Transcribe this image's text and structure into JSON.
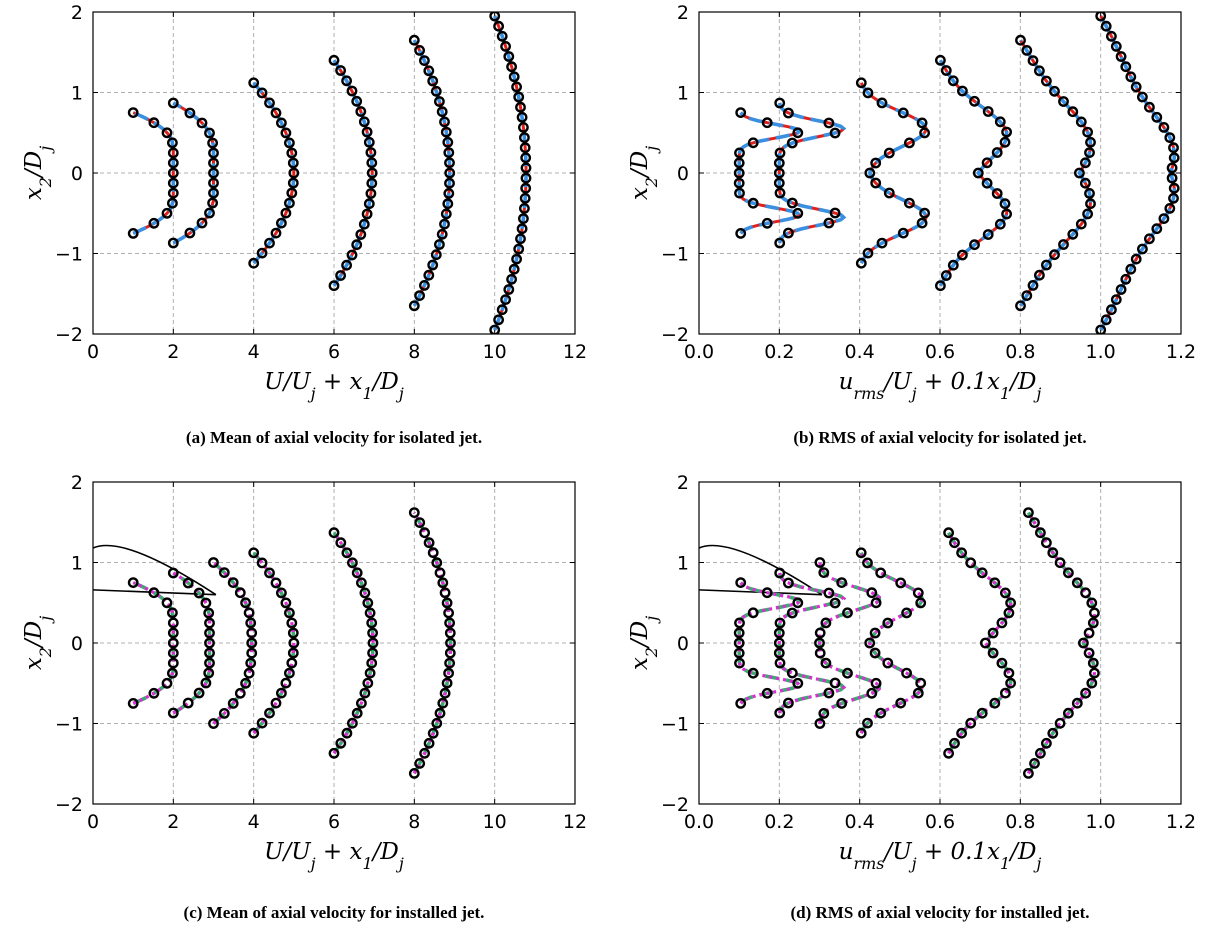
{
  "chart_data": [
    {
      "type": "line",
      "panel": "a",
      "caption": "(a) Mean of axial velocity for isolated jet.",
      "xlabel": "U/U_j + x_1/D_j",
      "ylabel": "x_2/D_j",
      "xlim": [
        0,
        12
      ],
      "ylim": [
        -2,
        2
      ],
      "xticks": [
        "0",
        "2",
        "4",
        "6",
        "8",
        "10",
        "12"
      ],
      "yticks": [
        "−2",
        "−1",
        "0",
        "1",
        "2"
      ],
      "grid": true,
      "profile_kind": "mean",
      "stations": [
        {
          "base": 1,
          "halfwidth": 0.75,
          "peak": 1.0,
          "core": 0.35
        },
        {
          "base": 2,
          "halfwidth": 0.87,
          "peak": 1.0,
          "core": 0.35
        },
        {
          "base": 4,
          "halfwidth": 1.12,
          "peak": 1.0,
          "core": 0.0
        },
        {
          "base": 6,
          "halfwidth": 1.4,
          "peak": 0.95,
          "core": 0.0
        },
        {
          "base": 8,
          "halfwidth": 1.65,
          "peak": 0.88,
          "core": 0.0
        },
        {
          "base": 10,
          "halfwidth": 1.95,
          "peak": 0.78,
          "core": 0.0
        }
      ],
      "series": [
        {
          "kind": "points",
          "color": "#000000"
        },
        {
          "kind": "solid",
          "color": "#e0201b"
        },
        {
          "kind": "dashed",
          "color": "#3a8fe0"
        }
      ]
    },
    {
      "type": "line",
      "panel": "b",
      "caption": "(b) RMS of axial velocity for isolated jet.",
      "xlabel": "u_rms/U_j + 0.1x_1/D_j",
      "ylabel": "x_2/D_j",
      "xlim": [
        0,
        1.2
      ],
      "ylim": [
        -2,
        2
      ],
      "xticks": [
        "0.0",
        "0.2",
        "0.4",
        "0.6",
        "0.8",
        "1.0",
        "1.2"
      ],
      "yticks": [
        "−2",
        "−1",
        "0",
        "1",
        "2"
      ],
      "grid": true,
      "profile_kind": "rms",
      "stations": [
        {
          "base": 0.1,
          "halfwidth": 0.75,
          "peak": 0.15,
          "shear": 0.52,
          "wid": 0.12,
          "center": 0.0
        },
        {
          "base": 0.2,
          "halfwidth": 0.87,
          "peak": 0.16,
          "shear": 0.55,
          "wid": 0.14,
          "center": 0.0
        },
        {
          "base": 0.4,
          "halfwidth": 1.12,
          "peak": 0.16,
          "shear": 0.55,
          "wid": 0.3,
          "center": 0.02
        },
        {
          "base": 0.6,
          "halfwidth": 1.4,
          "peak": 0.14,
          "shear": 0.5,
          "wid": 0.42,
          "center": 0.07
        },
        {
          "base": 0.8,
          "halfwidth": 1.65,
          "peak": 0.13,
          "shear": 0.4,
          "wid": 0.55,
          "center": 0.1
        },
        {
          "base": 1.0,
          "halfwidth": 1.95,
          "peak": 0.13,
          "shear": 0.25,
          "wid": 0.6,
          "center": 0.11
        }
      ],
      "series": [
        {
          "kind": "points",
          "color": "#000000"
        },
        {
          "kind": "solid",
          "color": "#e0201b"
        },
        {
          "kind": "dashed",
          "color": "#3a8fe0"
        }
      ]
    },
    {
      "type": "line",
      "panel": "c",
      "caption": "(c) Mean of axial velocity for installed jet.",
      "xlabel": "U/U_j + x_1/D_j",
      "ylabel": "x_2/D_j",
      "xlim": [
        0,
        12
      ],
      "ylim": [
        -2,
        2
      ],
      "xticks": [
        "0",
        "2",
        "4",
        "6",
        "8",
        "10",
        "12"
      ],
      "yticks": [
        "−2",
        "−1",
        "0",
        "1",
        "2"
      ],
      "grid": true,
      "profile_kind": "mean",
      "stations": [
        {
          "base": 1,
          "halfwidth": 0.75,
          "peak": 1.0,
          "core": 0.35
        },
        {
          "base": 2,
          "halfwidth": 0.87,
          "peak": 0.9,
          "core": 0.35
        },
        {
          "base": 3,
          "halfwidth": 1.0,
          "peak": 0.95,
          "core": 0.2
        },
        {
          "base": 4,
          "halfwidth": 1.12,
          "peak": 1.0,
          "core": 0.0
        },
        {
          "base": 6,
          "halfwidth": 1.37,
          "peak": 0.97,
          "core": 0.0
        },
        {
          "base": 8,
          "halfwidth": 1.62,
          "peak": 0.9,
          "core": 0.0
        }
      ],
      "series": [
        {
          "kind": "points",
          "color": "#000000"
        },
        {
          "kind": "dashed",
          "color": "#3aaa6e"
        },
        {
          "kind": "dotted",
          "color": "#e02ad8"
        }
      ]
    },
    {
      "type": "line",
      "panel": "d",
      "caption": "(d) RMS of axial velocity for installed jet.",
      "xlabel": "u_rms/U_j + 0.1x_1/D_j",
      "ylabel": "x_2/D_j",
      "xlim": [
        0,
        1.2
      ],
      "ylim": [
        -2,
        2
      ],
      "xticks": [
        "0.0",
        "0.2",
        "0.4",
        "0.6",
        "0.8",
        "1.0",
        "1.2"
      ],
      "yticks": [
        "−2",
        "−1",
        "0",
        "1",
        "2"
      ],
      "grid": true,
      "profile_kind": "rms",
      "stations": [
        {
          "base": 0.1,
          "halfwidth": 0.75,
          "peak": 0.15,
          "shear": 0.52,
          "wid": 0.12,
          "center": 0.0
        },
        {
          "base": 0.2,
          "halfwidth": 0.87,
          "peak": 0.16,
          "shear": 0.55,
          "wid": 0.14,
          "center": 0.0
        },
        {
          "base": 0.3,
          "halfwidth": 1.0,
          "peak": 0.15,
          "shear": 0.55,
          "wid": 0.2,
          "center": 0.0
        },
        {
          "base": 0.4,
          "halfwidth": 1.12,
          "peak": 0.15,
          "shear": 0.55,
          "wid": 0.3,
          "center": 0.02
        },
        {
          "base": 0.62,
          "halfwidth": 1.37,
          "peak": 0.13,
          "shear": 0.5,
          "wid": 0.42,
          "center": 0.07
        },
        {
          "base": 0.82,
          "halfwidth": 1.62,
          "peak": 0.12,
          "shear": 0.4,
          "wid": 0.5,
          "center": 0.1
        }
      ],
      "series": [
        {
          "kind": "points",
          "color": "#000000"
        },
        {
          "kind": "dashed",
          "color": "#3aaa6e"
        },
        {
          "kind": "dotted",
          "color": "#e02ad8"
        }
      ]
    }
  ]
}
